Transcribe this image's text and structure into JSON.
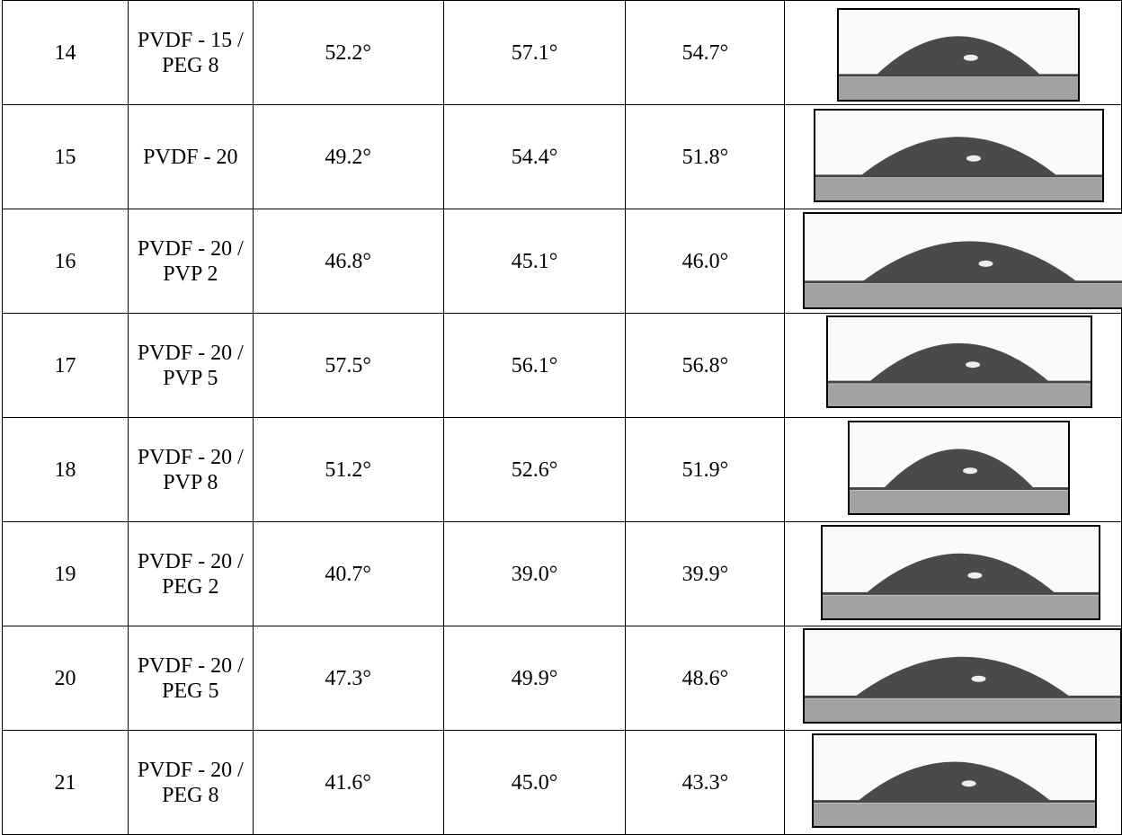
{
  "table": {
    "rows": [
      [
        "14",
        "PVDF - 15 /\nPEG 8",
        "52.2°",
        "57.1°",
        "54.7°"
      ],
      [
        "15",
        "PVDF - 20",
        "49.2°",
        "54.4°",
        "51.8°"
      ],
      [
        "16",
        "PVDF - 20 /\nPVP 2",
        "46.8°",
        "45.1°",
        "46.0°"
      ],
      [
        "17",
        "PVDF - 20 /\nPVP 5",
        "57.5°",
        "56.1°",
        "56.8°"
      ],
      [
        "18",
        "PVDF - 20 /\nPVP 8",
        "51.2°",
        "52.6°",
        "51.9°"
      ],
      [
        "19",
        "PVDF - 20 /\nPEG 2",
        "40.7°",
        "39.0°",
        "39.9°"
      ],
      [
        "20",
        "PVDF - 20 /\nPEG 5",
        "47.3°",
        "49.9°",
        "48.6°"
      ],
      [
        "21",
        "PVDF - 20 /\nPEG 8",
        "41.6°",
        "45.0°",
        "43.3°"
      ]
    ]
  }
}
